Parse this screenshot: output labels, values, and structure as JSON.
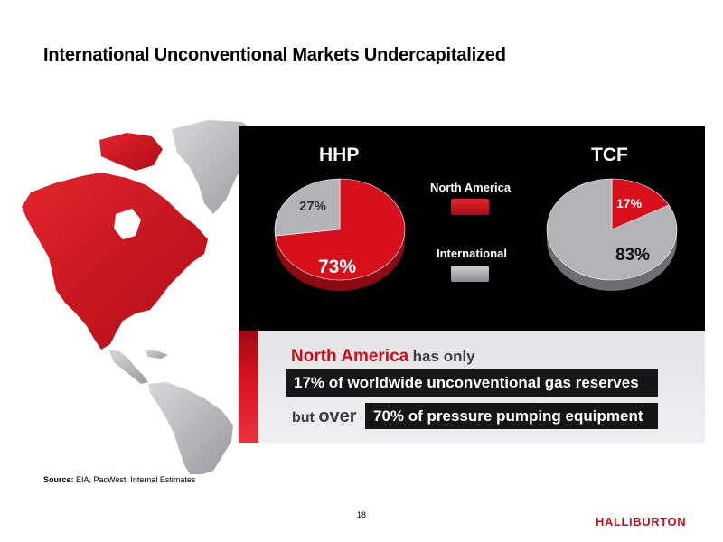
{
  "slide": {
    "title": "International Unconventional Markets Undercapitalized",
    "page_number": "18",
    "logo_text": "HALLIBURTON"
  },
  "legend": {
    "north_america": "North America",
    "international": "International"
  },
  "callout": {
    "line1_highlight": "North America",
    "line1_rest": "has only",
    "line2": "17% of worldwide unconventional gas reserves",
    "line3_but": "but",
    "line3_over": "over",
    "line3_bar": "70% of pressure pumping equipment"
  },
  "source": {
    "label": "Source:",
    "text": "EIA, PacWest, Internal Estimates"
  },
  "colors": {
    "north_america": "#c5101c",
    "international": "#a4a4a8",
    "panel": "#000000",
    "accent": "#c5101c"
  },
  "chart_data": [
    {
      "type": "pie",
      "title": "HHP",
      "categories": [
        "North America",
        "International"
      ],
      "values": [
        73,
        27
      ],
      "labels": [
        "73%",
        "27%"
      ]
    },
    {
      "type": "pie",
      "title": "TCF",
      "categories": [
        "North America",
        "International"
      ],
      "values": [
        17,
        83
      ],
      "labels": [
        "17%",
        "83%"
      ]
    }
  ]
}
